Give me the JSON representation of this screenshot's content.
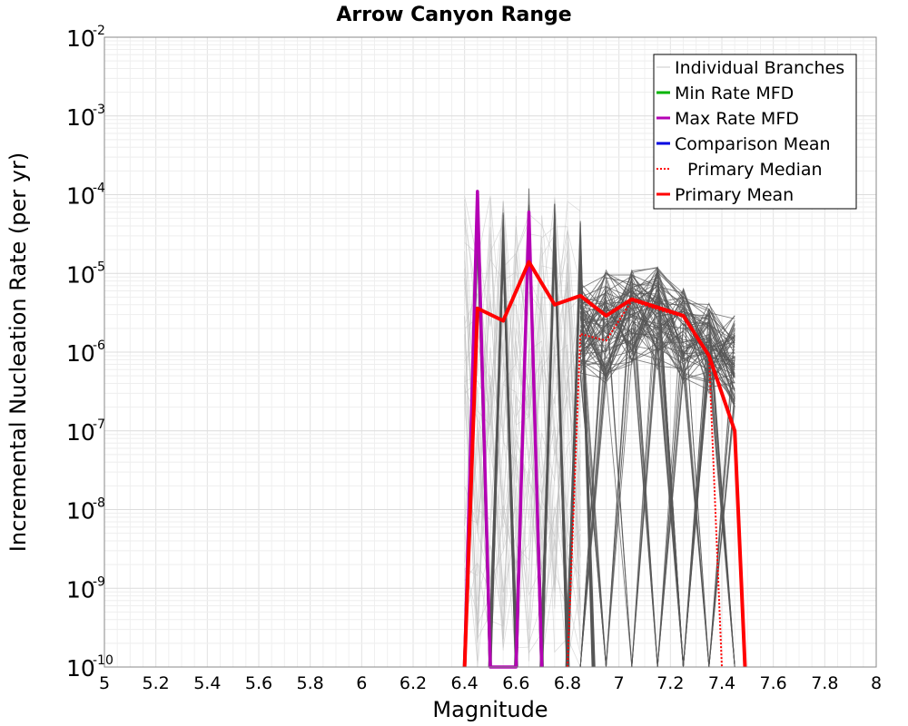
{
  "chart_data": {
    "type": "line",
    "title": "Arrow Canyon Range",
    "xlabel": "Magnitude",
    "ylabel": "Incremental Nucleation Rate (per yr)",
    "xlim": [
      5,
      8
    ],
    "ylim_exponents": [
      -10,
      -2
    ],
    "y_scale": "log",
    "x_ticks": [
      "5",
      "5.2",
      "5.4",
      "5.6",
      "5.8",
      "6",
      "6.2",
      "6.4",
      "6.6",
      "6.8",
      "7",
      "7.2",
      "7.4",
      "7.6",
      "7.8",
      "8"
    ],
    "y_tick_base": "10",
    "y_tick_exponents": [
      "-10",
      "-9",
      "-8",
      "-7",
      "-6",
      "-5",
      "-4",
      "-3",
      "-2"
    ],
    "legend": {
      "placement": "top-right",
      "entries": [
        {
          "label": "Individual Branches",
          "color": "#c8c8c8",
          "style": "thin"
        },
        {
          "label": "Min Rate MFD",
          "color": "#00b400",
          "style": "solid"
        },
        {
          "label": "Max Rate MFD",
          "color": "#b400b4",
          "style": "solid"
        },
        {
          "label": "Comparison Mean",
          "color": "#0000e0",
          "style": "solid"
        },
        {
          "label": "Primary Median",
          "color": "#ff0000",
          "style": "dotted"
        },
        {
          "label": "Primary Mean",
          "color": "#ff0000",
          "style": "thick"
        }
      ]
    },
    "branch_color": "#555555",
    "branch_light_color": "#bbbbbb",
    "branch_spikes": [
      {
        "m": 6.45,
        "peak": 0.00011
      },
      {
        "m": 6.55,
        "peak": 8e-05
      },
      {
        "m": 6.65,
        "peak": 0.00012
      },
      {
        "m": 6.75,
        "peak": 8e-05
      },
      {
        "m": 6.85,
        "peak": 5e-05
      }
    ],
    "branch_envelope": {
      "m": [
        6.85,
        6.95,
        7.05,
        7.15,
        7.25,
        7.35,
        7.45
      ],
      "high": [
        8e-06,
        1.1e-05,
        1.1e-05,
        1.2e-05,
        8e-06,
        5e-06,
        3.5e-06
      ],
      "low": [
        5e-07,
        4e-07,
        7e-07,
        6e-07,
        4e-07,
        3e-07,
        2e-07
      ]
    },
    "series": [
      {
        "name": "Max Rate MFD",
        "color": "#b400b4",
        "points": [
          [
            6.4,
            1e-10
          ],
          [
            6.45,
            0.00011
          ],
          [
            6.5,
            1e-10
          ],
          [
            6.6,
            1e-10
          ],
          [
            6.65,
            6e-05
          ],
          [
            6.7,
            1e-10
          ]
        ]
      },
      {
        "name": "Primary Median",
        "color": "#ff0000",
        "style": "dotted",
        "points": [
          [
            6.8,
            1e-10
          ],
          [
            6.85,
            1.7e-06
          ],
          [
            6.95,
            1.4e-06
          ],
          [
            7.05,
            4.5e-06
          ],
          [
            7.15,
            3.5e-06
          ],
          [
            7.25,
            2.8e-06
          ],
          [
            7.35,
            9e-07
          ],
          [
            7.4,
            1e-10
          ]
        ]
      },
      {
        "name": "Primary Mean",
        "color": "#ff0000",
        "style": "thick",
        "points": [
          [
            6.4,
            1e-10
          ],
          [
            6.45,
            3.6e-06
          ],
          [
            6.55,
            2.5e-06
          ],
          [
            6.65,
            1.4e-05
          ],
          [
            6.75,
            4e-06
          ],
          [
            6.85,
            5.2e-06
          ],
          [
            6.95,
            2.9e-06
          ],
          [
            7.05,
            4.7e-06
          ],
          [
            7.15,
            3.7e-06
          ],
          [
            7.25,
            2.9e-06
          ],
          [
            7.35,
            9e-07
          ],
          [
            7.45,
            1e-07
          ],
          [
            7.49,
            1e-10
          ]
        ]
      }
    ]
  }
}
